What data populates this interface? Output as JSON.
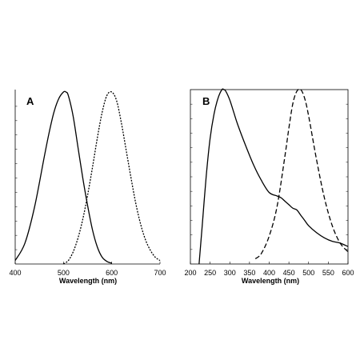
{
  "chart_data": [
    {
      "type": "line",
      "panel_label": "A",
      "xlabel": "Wavelength (nm)",
      "ylabel": "",
      "xlim": [
        400,
        700
      ],
      "ylim": [
        0,
        1
      ],
      "xticks": [
        400,
        500,
        600,
        700
      ],
      "grid": false,
      "series": [
        {
          "style": "solid",
          "x": [
            400,
            420,
            440,
            460,
            470,
            480,
            490,
            500,
            505,
            510,
            520,
            530,
            540,
            550,
            560,
            570,
            580,
            590,
            600
          ],
          "y": [
            0.02,
            0.12,
            0.33,
            0.62,
            0.76,
            0.88,
            0.96,
            1.0,
            1.0,
            0.98,
            0.86,
            0.68,
            0.5,
            0.34,
            0.2,
            0.1,
            0.04,
            0.015,
            0.005
          ]
        },
        {
          "style": "dotted",
          "x": [
            500,
            510,
            520,
            530,
            540,
            550,
            560,
            570,
            580,
            590,
            600,
            610,
            620,
            630,
            640,
            650,
            660,
            670,
            680,
            690,
            700
          ],
          "y": [
            0.0,
            0.02,
            0.07,
            0.15,
            0.26,
            0.4,
            0.56,
            0.73,
            0.88,
            0.98,
            1.0,
            0.95,
            0.82,
            0.66,
            0.5,
            0.35,
            0.23,
            0.14,
            0.08,
            0.04,
            0.02
          ]
        }
      ]
    },
    {
      "type": "line",
      "panel_label": "B",
      "xlabel": "Wavelength (nm)",
      "ylabel": "",
      "xlim": [
        200,
        600
      ],
      "ylim": [
        0,
        1
      ],
      "xticks": [
        200,
        250,
        300,
        350,
        400,
        450,
        500,
        550,
        600
      ],
      "grid": false,
      "series": [
        {
          "style": "solid",
          "x": [
            222,
            230,
            240,
            250,
            260,
            270,
            280,
            285,
            290,
            300,
            310,
            320,
            340,
            360,
            380,
            400,
            420,
            430,
            440,
            450,
            460,
            470,
            480,
            490,
            500,
            520,
            540,
            560,
            580,
            600
          ],
          "y": [
            0.0,
            0.22,
            0.5,
            0.72,
            0.86,
            0.95,
            1.0,
            1.0,
            0.99,
            0.94,
            0.87,
            0.8,
            0.68,
            0.57,
            0.48,
            0.41,
            0.39,
            0.38,
            0.36,
            0.34,
            0.32,
            0.31,
            0.28,
            0.25,
            0.22,
            0.18,
            0.15,
            0.13,
            0.12,
            0.1
          ]
        },
        {
          "style": "dashed",
          "x": [
            365,
            380,
            400,
            420,
            440,
            450,
            460,
            470,
            480,
            490,
            500,
            520,
            540,
            560,
            580,
            600
          ],
          "y": [
            0.03,
            0.06,
            0.16,
            0.33,
            0.62,
            0.78,
            0.92,
            0.99,
            1.0,
            0.95,
            0.85,
            0.6,
            0.38,
            0.22,
            0.12,
            0.07
          ]
        }
      ]
    }
  ]
}
